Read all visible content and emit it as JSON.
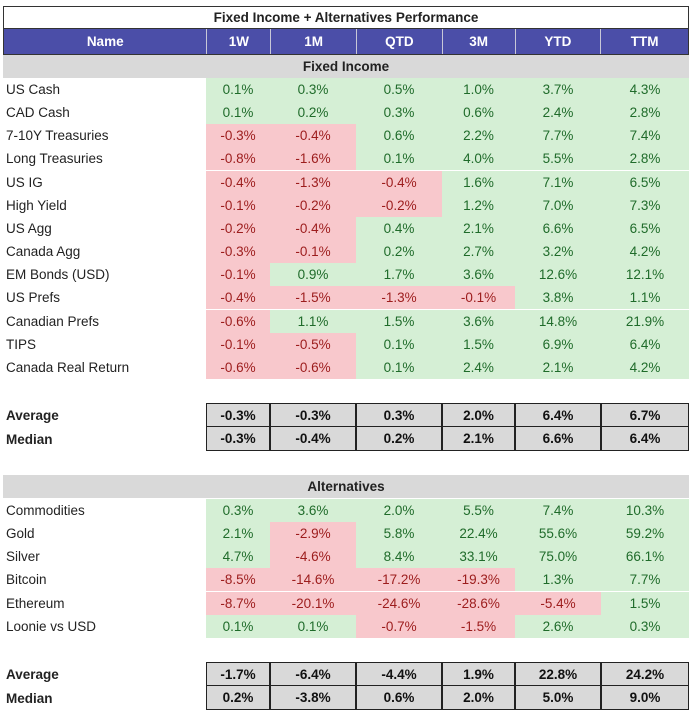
{
  "title": "Fixed Income + Alternatives Performance",
  "columns": [
    "Name",
    "1W",
    "1M",
    "QTD",
    "3M",
    "YTD",
    "TTM"
  ],
  "fixed_income": {
    "section_label": "Fixed Income",
    "rows": [
      {
        "name": "US Cash",
        "values": [
          "0.1%",
          "0.3%",
          "0.5%",
          "1.0%",
          "3.7%",
          "4.3%"
        ]
      },
      {
        "name": "CAD Cash",
        "values": [
          "0.1%",
          "0.2%",
          "0.3%",
          "0.6%",
          "2.4%",
          "2.8%"
        ]
      },
      {
        "name": "7-10Y Treasuries",
        "values": [
          "-0.3%",
          "-0.4%",
          "0.6%",
          "2.2%",
          "7.7%",
          "7.4%"
        ]
      },
      {
        "name": "Long Treasuries",
        "values": [
          "-0.8%",
          "-1.6%",
          "0.1%",
          "4.0%",
          "5.5%",
          "2.8%"
        ]
      },
      {
        "name": "US IG",
        "values": [
          "-0.4%",
          "-1.3%",
          "-0.4%",
          "1.6%",
          "7.1%",
          "6.5%"
        ]
      },
      {
        "name": "High Yield",
        "values": [
          "-0.1%",
          "-0.2%",
          "-0.2%",
          "1.2%",
          "7.0%",
          "7.3%"
        ]
      },
      {
        "name": "US Agg",
        "values": [
          "-0.2%",
          "-0.4%",
          "0.4%",
          "2.1%",
          "6.6%",
          "6.5%"
        ]
      },
      {
        "name": "Canada Agg",
        "values": [
          "-0.3%",
          "-0.1%",
          "0.2%",
          "2.7%",
          "3.2%",
          "4.2%"
        ]
      },
      {
        "name": "EM Bonds (USD)",
        "values": [
          "-0.1%",
          "0.9%",
          "1.7%",
          "3.6%",
          "12.6%",
          "12.1%"
        ]
      },
      {
        "name": "US Prefs",
        "values": [
          "-0.4%",
          "-1.5%",
          "-1.3%",
          "-0.1%",
          "3.8%",
          "1.1%"
        ]
      },
      {
        "name": "Canadian Prefs",
        "values": [
          "-0.6%",
          "1.1%",
          "1.5%",
          "3.6%",
          "14.8%",
          "21.9%"
        ]
      },
      {
        "name": "TIPS",
        "values": [
          "-0.1%",
          "-0.5%",
          "0.1%",
          "1.5%",
          "6.9%",
          "6.4%"
        ]
      },
      {
        "name": "Canada Real Return",
        "values": [
          "-0.6%",
          "-0.6%",
          "0.1%",
          "2.4%",
          "2.1%",
          "4.2%"
        ]
      }
    ],
    "summary": [
      {
        "name": "Average",
        "values": [
          "-0.3%",
          "-0.3%",
          "0.3%",
          "2.0%",
          "6.4%",
          "6.7%"
        ]
      },
      {
        "name": "Median",
        "values": [
          "-0.3%",
          "-0.4%",
          "0.2%",
          "2.1%",
          "6.6%",
          "6.4%"
        ]
      }
    ]
  },
  "alternatives": {
    "section_label": "Alternatives",
    "rows": [
      {
        "name": "Commodities",
        "values": [
          "0.3%",
          "3.6%",
          "2.0%",
          "5.5%",
          "7.4%",
          "10.3%"
        ]
      },
      {
        "name": "Gold",
        "values": [
          "2.1%",
          "-2.9%",
          "5.8%",
          "22.4%",
          "55.6%",
          "59.2%"
        ]
      },
      {
        "name": "Silver",
        "values": [
          "4.7%",
          "-4.6%",
          "8.4%",
          "33.1%",
          "75.0%",
          "66.1%"
        ]
      },
      {
        "name": "Bitcoin",
        "values": [
          "-8.5%",
          "-14.6%",
          "-17.2%",
          "-19.3%",
          "1.3%",
          "7.7%"
        ]
      },
      {
        "name": "Ethereum",
        "values": [
          "-8.7%",
          "-20.1%",
          "-24.6%",
          "-28.6%",
          "-5.4%",
          "1.5%"
        ]
      },
      {
        "name": "Loonie vs USD",
        "values": [
          "0.1%",
          "0.1%",
          "-0.7%",
          "-1.5%",
          "2.6%",
          "0.3%"
        ]
      }
    ],
    "summary": [
      {
        "name": "Average",
        "values": [
          "-1.7%",
          "-6.4%",
          "-4.4%",
          "1.9%",
          "22.8%",
          "24.2%"
        ]
      },
      {
        "name": "Median",
        "values": [
          "0.2%",
          "-3.8%",
          "0.6%",
          "2.0%",
          "5.0%",
          "9.0%"
        ]
      }
    ]
  },
  "colors": {
    "header_bg": "#4b4ea8",
    "positive_bg": "#d5efd5",
    "positive_text": "#1f6b2a",
    "negative_bg": "#f8c8cc",
    "negative_text": "#9c1c1c",
    "section_bg": "#d9d9d9"
  }
}
